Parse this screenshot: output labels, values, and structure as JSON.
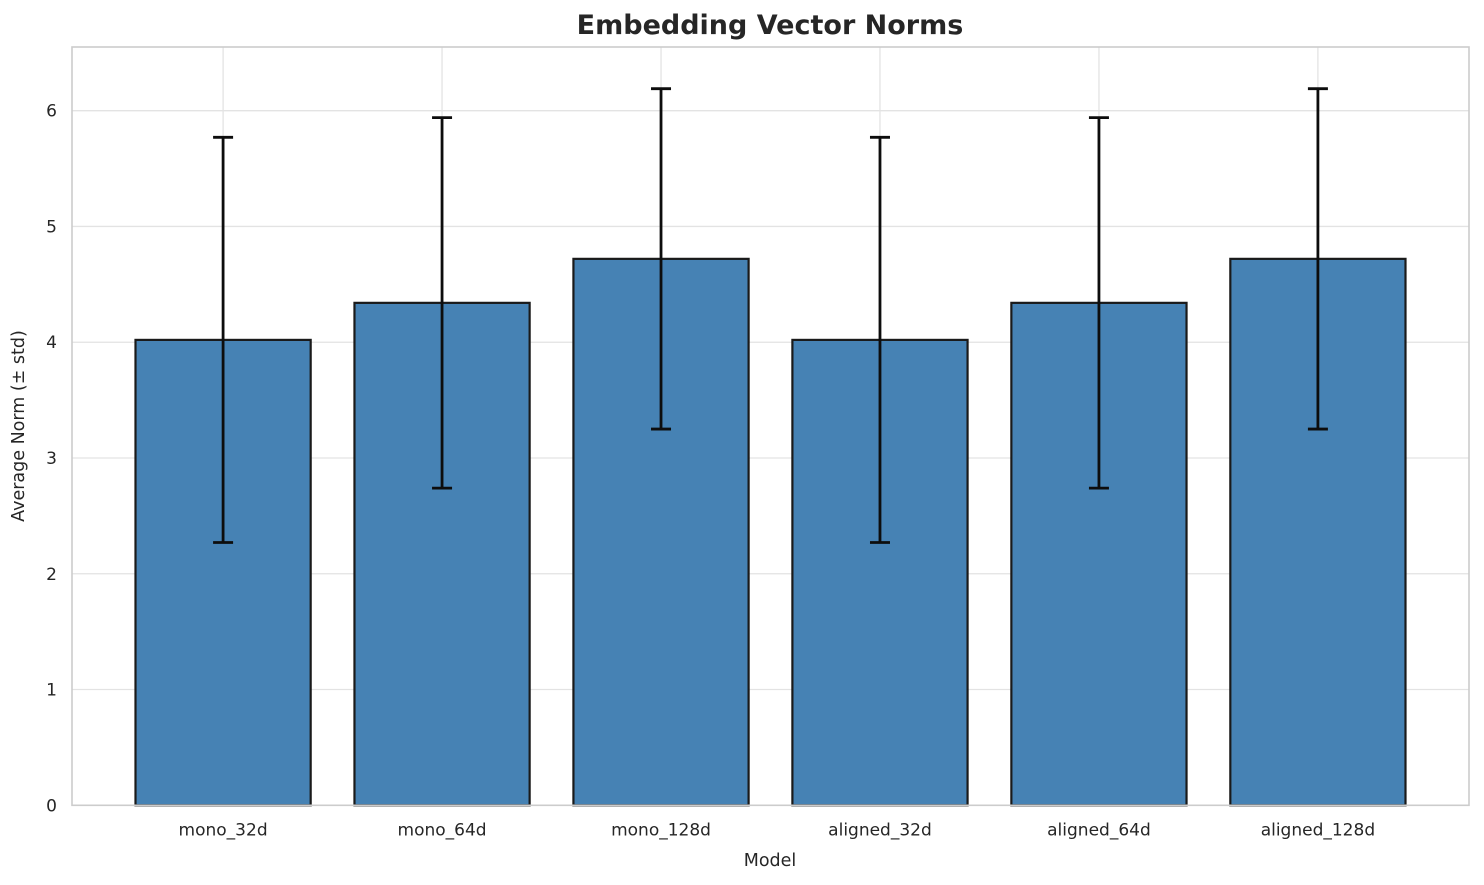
{
  "chart_data": {
    "type": "bar",
    "title": "Embedding Vector Norms",
    "xlabel": "Model",
    "ylabel": "Average Norm (± std)",
    "categories": [
      "mono_32d",
      "mono_64d",
      "mono_128d",
      "aligned_32d",
      "aligned_64d",
      "aligned_128d"
    ],
    "values": [
      4.02,
      4.34,
      4.72,
      4.02,
      4.34,
      4.72
    ],
    "error_std": [
      1.75,
      1.6,
      1.47,
      1.75,
      1.6,
      1.47
    ],
    "yticks": [
      0,
      1,
      2,
      3,
      4,
      5,
      6
    ],
    "ylim": [
      0,
      6.55
    ],
    "xlim_pad": 0.69,
    "bar_width_frac": 0.8,
    "grid": true,
    "legend": "none",
    "colors": {
      "bar_fill": "#4682b4",
      "bar_edge": "#1a1a1a",
      "error_bar": "#0d0d0d",
      "grid_line": "#e3e3e3",
      "spine": "#cccccc",
      "text": "#262626",
      "background": "#ffffff"
    }
  }
}
